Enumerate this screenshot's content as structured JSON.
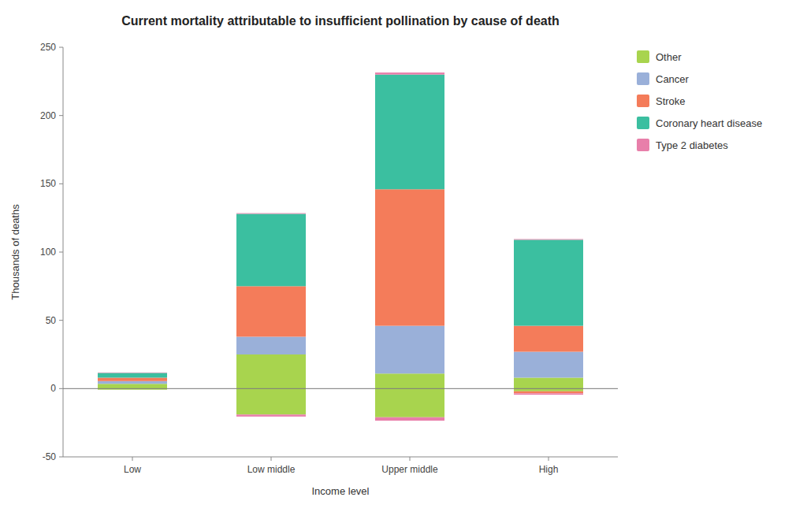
{
  "chart_data": {
    "type": "bar",
    "title": "Current mortality attributable to insufficient pollination by cause of death",
    "x_label": "Income level",
    "y_label": "Thousands of deaths",
    "categories": [
      "Low",
      "Low middle",
      "Upper middle",
      "High"
    ],
    "stacked": true,
    "grid": false,
    "legend": "right",
    "ylim": [
      -50,
      250
    ],
    "yticks": [
      -50,
      0,
      50,
      100,
      150,
      200,
      250
    ],
    "series": [
      {
        "name": "Other",
        "color": "#a8d44e",
        "values": [
          3.5,
          25.0,
          11.0,
          8.0
        ],
        "negative": [
          -0.8,
          -19.0,
          -21.0,
          -2.0
        ]
      },
      {
        "name": "Cancer",
        "color": "#9ab0d9",
        "values": [
          2.0,
          13.0,
          35.0,
          19.0
        ],
        "negative": [
          0.0,
          0.0,
          0.0,
          0.0
        ]
      },
      {
        "name": "Stroke",
        "color": "#f47c5a",
        "values": [
          2.5,
          37.0,
          100.0,
          19.0
        ],
        "negative": [
          0.0,
          0.0,
          0.0,
          -1.5
        ]
      },
      {
        "name": "Coronary heart disease",
        "color": "#3bbfa0",
        "values": [
          3.5,
          53.0,
          84.0,
          63.0
        ],
        "negative": [
          0.0,
          0.0,
          0.0,
          0.0
        ]
      },
      {
        "name": "Type 2 diabetes",
        "color": "#e87faa",
        "values": [
          0.3,
          0.5,
          1.5,
          0.5
        ],
        "negative": [
          0.0,
          -1.5,
          -2.5,
          -1.0
        ]
      }
    ]
  }
}
